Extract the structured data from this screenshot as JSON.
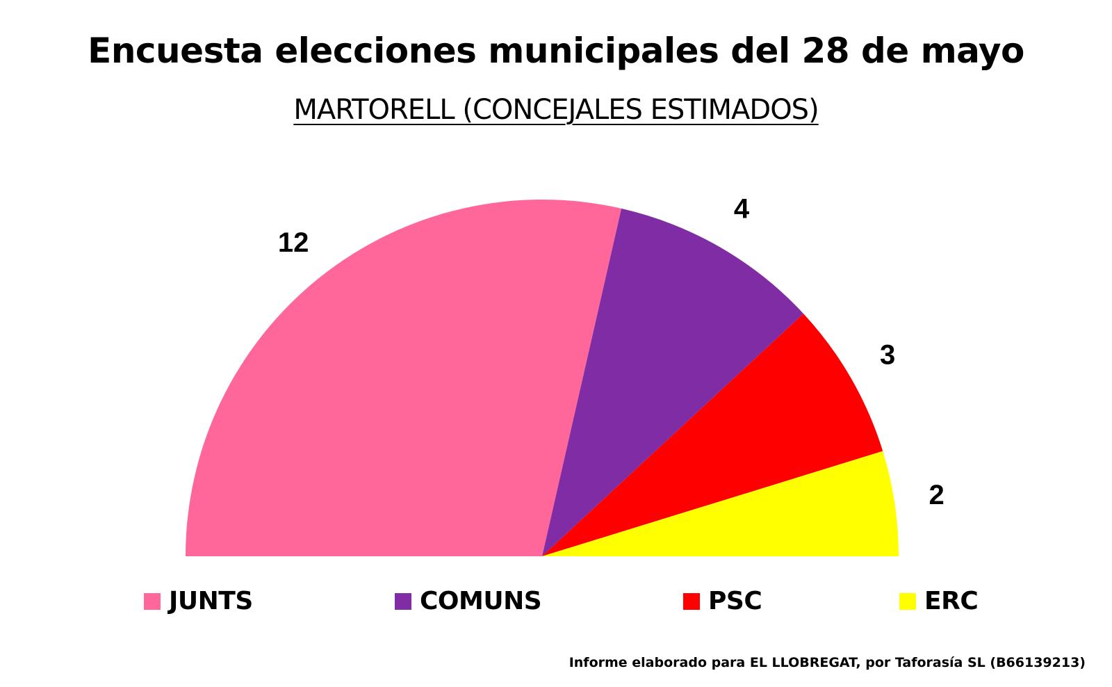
{
  "title": "Encuesta elecciones municipales del 28 de mayo",
  "subtitle": "MARTORELL (CONCEJALES ESTIMADOS)",
  "footer": "Informe elaborado para EL LLOBREGAT, por Taforasía SL (B66139213)",
  "chart_data": {
    "type": "pie",
    "variant": "semicircle",
    "categories": [
      "JUNTS",
      "COMUNS",
      "PSC",
      "ERC"
    ],
    "values": [
      12,
      4,
      3,
      2
    ],
    "data_labels": [
      "12",
      "4",
      "3",
      "2"
    ],
    "colors": [
      "#ff6699",
      "#7f2ca5",
      "#ff0000",
      "#ffff00"
    ],
    "legend": {
      "position": "bottom",
      "entries": [
        "JUNTS",
        "COMUNS",
        "PSC",
        "ERC"
      ]
    },
    "title": "Encuesta elecciones municipales del 28 de mayo",
    "subtitle": "MARTORELL (CONCEJALES ESTIMADOS)"
  }
}
